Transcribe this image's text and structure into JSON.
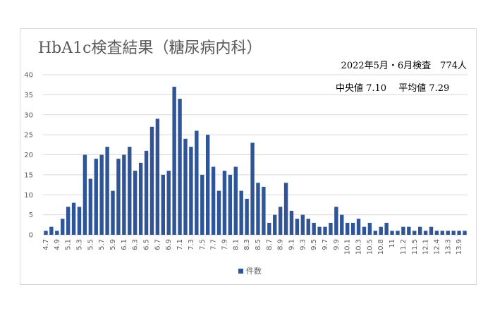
{
  "colors": {
    "bar": "#2f5597",
    "grid": "#d9d9d9",
    "text": "#595959"
  },
  "notes": {
    "line1": "2022年5月・6月検査　774人",
    "line2": "中央値 7.10　 平均値  7.29"
  },
  "chart_data": {
    "type": "bar",
    "title": "HbA1c検査結果（糖尿病内科）",
    "xlabel": "",
    "ylabel": "",
    "ylim": [
      0,
      40
    ],
    "yticks": [
      0,
      5,
      10,
      15,
      20,
      25,
      30,
      35,
      40
    ],
    "grid": true,
    "legend_position": "bottom",
    "categories": [
      "4.7",
      "4.8",
      "4.9",
      "5.0",
      "5.1",
      "5.2",
      "5.3",
      "5.4",
      "5.5",
      "5.6",
      "5.7",
      "5.8",
      "5.9",
      "6.0",
      "6.1",
      "6.2",
      "6.3",
      "6.4",
      "6.5",
      "6.6",
      "6.7",
      "6.8",
      "6.9",
      "7.0",
      "7.1",
      "7.2",
      "7.3",
      "7.4",
      "7.5",
      "7.6",
      "7.7",
      "7.8",
      "7.9",
      "8.0",
      "8.1",
      "8.2",
      "8.3",
      "8.4",
      "8.5",
      "8.6",
      "8.7",
      "8.8",
      "8.9",
      "9.0",
      "9.1",
      "9.2",
      "9.3",
      "9.4",
      "9.5",
      "9.6",
      "9.7",
      "9.8",
      "9.9",
      "10.0",
      "10.1",
      "10.2",
      "10.3",
      "10.4",
      "10.5",
      "10.6",
      "10.8",
      "10.9",
      "11.0",
      "11.1",
      "11.2",
      "11.3",
      "11.5",
      "11.6",
      "12.1",
      "12.2",
      "12.4",
      "12.6",
      "13.3",
      "13.4",
      "13.9",
      "14.0"
    ],
    "tick_labels": [
      "4.7",
      "",
      "4.9",
      "",
      "5.1",
      "",
      "5.3",
      "",
      "5.5",
      "",
      "5.7",
      "",
      "5.9",
      "",
      "6.1",
      "",
      "6.3",
      "",
      "6.5",
      "",
      "6.7",
      "",
      "6.9",
      "",
      "7.1",
      "",
      "7.3",
      "",
      "7.5",
      "",
      "7.7",
      "",
      "7.9",
      "",
      "8.1",
      "",
      "8.3",
      "",
      "8.5",
      "",
      "8.7",
      "",
      "8.9",
      "",
      "9.1",
      "",
      "9.3",
      "",
      "9.5",
      "",
      "9.7",
      "",
      "9.9",
      "",
      "10.1",
      "",
      "10.3",
      "",
      "10.5",
      "",
      "10.8",
      "",
      "11",
      "",
      "11.2",
      "",
      "11.5",
      "",
      "12.1",
      "",
      "12.4",
      "",
      "13.3",
      "",
      "13.9",
      ""
    ],
    "series": [
      {
        "name": "件数",
        "values": [
          1,
          2,
          1,
          4,
          7,
          8,
          7,
          20,
          14,
          19,
          20,
          22,
          11,
          19,
          20,
          22,
          16,
          18,
          21,
          27,
          29,
          15,
          16,
          37,
          34,
          24,
          22,
          26,
          15,
          25,
          17,
          11,
          16,
          15,
          17,
          11,
          9,
          23,
          13,
          12,
          3,
          5,
          7,
          13,
          6,
          4,
          5,
          4,
          3,
          2,
          2,
          3,
          7,
          5,
          3,
          3,
          4,
          2,
          3,
          1,
          2,
          3,
          1,
          1,
          2,
          2,
          1,
          2,
          1,
          2,
          1,
          1,
          1,
          1,
          1,
          1
        ]
      }
    ]
  }
}
